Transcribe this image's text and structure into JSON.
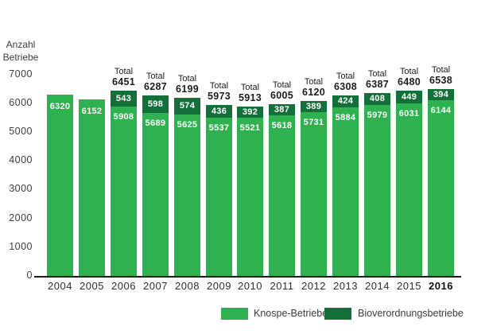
{
  "colors": {
    "knospe_green": "#2FB14F",
    "bioverordnung_green": "#156F3A",
    "axis_black": "#1D1D1B",
    "text_gray": "#3C3C3B",
    "bar_value_text": "#FFFFFF",
    "background": "#FFFFFF"
  },
  "y_axis_title": {
    "line1": "Anzahl",
    "line2": "Betriebe"
  },
  "chart_data": {
    "type": "bar",
    "stacked": true,
    "title": "",
    "xlabel": "",
    "ylabel": "Anzahl Betriebe",
    "categories": [
      2004,
      2005,
      2006,
      2007,
      2008,
      2009,
      2010,
      2011,
      2012,
      2013,
      2014,
      2015,
      2016
    ],
    "series": [
      {
        "name": "Knospe-Betriebe",
        "color": "#2FB14F",
        "values": [
          6320,
          6152,
          5908,
          5689,
          5625,
          5537,
          5521,
          5618,
          5731,
          5884,
          5979,
          6031,
          6144
        ]
      },
      {
        "name": "Bioverordnungsbetriebe",
        "color": "#156F3A",
        "values": [
          null,
          null,
          543,
          598,
          574,
          436,
          392,
          387,
          389,
          424,
          408,
          449,
          394
        ]
      }
    ],
    "totals": [
      null,
      null,
      6451,
      6287,
      6199,
      5973,
      5913,
      6005,
      6120,
      6308,
      6387,
      6480,
      6538
    ],
    "total_label_prefix": "Total",
    "ylim": [
      0,
      7000
    ],
    "y_ticks": [
      0,
      1000,
      2000,
      3000,
      4000,
      5000,
      6000,
      7000
    ],
    "grid": false,
    "legend_position": "bottom-right",
    "bold_categories": [
      2016
    ],
    "bar_value_labels_shown": true
  },
  "legend": {
    "items": [
      {
        "label": "Knospe-Betriebe",
        "color": "#2FB14F"
      },
      {
        "label": "Bioverordnungsbetriebe",
        "color": "#156F3A"
      }
    ]
  }
}
